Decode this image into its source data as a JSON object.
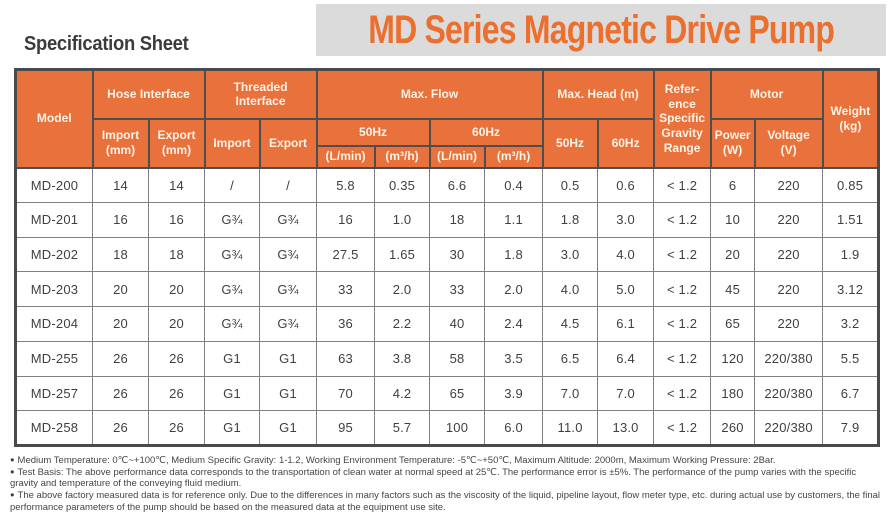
{
  "page": {
    "sheet_label": "Specification Sheet",
    "title": "MD Series Magnetic Drive Pump"
  },
  "colors": {
    "accent_orange": "#E8713C",
    "title_orange": "#EC6F2D",
    "title_background": "#DBDBDB",
    "header_text": "#FDF3E7",
    "body_text": "#3F3F3F",
    "grid_line": "#7F7F7F",
    "outer_border": "#4A4A4A"
  },
  "icons": {
    "bullet": "●"
  },
  "table": {
    "header": {
      "model": "Model",
      "hose_interface": "Hose Interface",
      "threaded_interface": "Threaded\nInterface",
      "max_flow": "Max. Flow",
      "max_head": "Max. Head (m)",
      "reference": "Refer-\nence\nSpecific\nGravity\nRange",
      "motor": "Motor",
      "weight": "Weight\n(kg)",
      "import_mm": "Import\n(mm)",
      "export_mm": "Export\n(mm)",
      "import": "Import",
      "export": "Export",
      "hz50": "50Hz",
      "hz60": "60Hz",
      "head_hz50": "50Hz",
      "head_hz60": "60Hz",
      "power": "Power\n(W)",
      "voltage": "Voltage\n(V)",
      "l_min": "(L/min)",
      "m3_h": "(m³/h)"
    },
    "rows": [
      [
        "MD-200",
        "14",
        "14",
        "/",
        "/",
        "5.8",
        "0.35",
        "6.6",
        "0.4",
        "0.5",
        "0.6",
        "< 1.2",
        "6",
        "220",
        "0.85"
      ],
      [
        "MD-201",
        "16",
        "16",
        "G¾",
        "G¾",
        "16",
        "1.0",
        "18",
        "1.1",
        "1.8",
        "3.0",
        "< 1.2",
        "10",
        "220",
        "1.51"
      ],
      [
        "MD-202",
        "18",
        "18",
        "G¾",
        "G¾",
        "27.5",
        "1.65",
        "30",
        "1.8",
        "3.0",
        "4.0",
        "< 1.2",
        "20",
        "220",
        "1.9"
      ],
      [
        "MD-203",
        "20",
        "20",
        "G¾",
        "G¾",
        "33",
        "2.0",
        "33",
        "2.0",
        "4.0",
        "5.0",
        "< 1.2",
        "45",
        "220",
        "3.12"
      ],
      [
        "MD-204",
        "20",
        "20",
        "G¾",
        "G¾",
        "36",
        "2.2",
        "40",
        "2.4",
        "4.5",
        "6.1",
        "< 1.2",
        "65",
        "220",
        "3.2"
      ],
      [
        "MD-255",
        "26",
        "26",
        "G1",
        "G1",
        "63",
        "3.8",
        "58",
        "3.5",
        "6.5",
        "6.4",
        "< 1.2",
        "120",
        "220/380",
        "5.5"
      ],
      [
        "MD-257",
        "26",
        "26",
        "G1",
        "G1",
        "70",
        "4.2",
        "65",
        "3.9",
        "7.0",
        "7.0",
        "< 1.2",
        "180",
        "220/380",
        "6.7"
      ],
      [
        "MD-258",
        "26",
        "26",
        "G1",
        "G1",
        "95",
        "5.7",
        "100",
        "6.0",
        "11.0",
        "13.0",
        "< 1.2",
        "260",
        "220/380",
        "7.9"
      ]
    ]
  },
  "footnotes": [
    "Medium Temperature: 0℃~+100℃, Medium Specific Gravity: 1-1.2, Working Environment Temperature: -5℃~+50℃, Maximum Altitude: 2000m, Maximum Working Pressure: 2Bar.",
    "Test Basis: The above performance data corresponds to the transportation of clean water at normal speed at 25℃. The performance error is ±5%. The performance of the pump varies with the specific gravity and temperature of the conveying fluid medium.",
    "The above factory measured data is for reference only. Due to the differences in many factors such as the viscosity of the liquid, pipeline layout, flow meter type, etc. during actual use by customers, the final performance parameters of the pump should be based on the measured data at the equipment use site."
  ]
}
